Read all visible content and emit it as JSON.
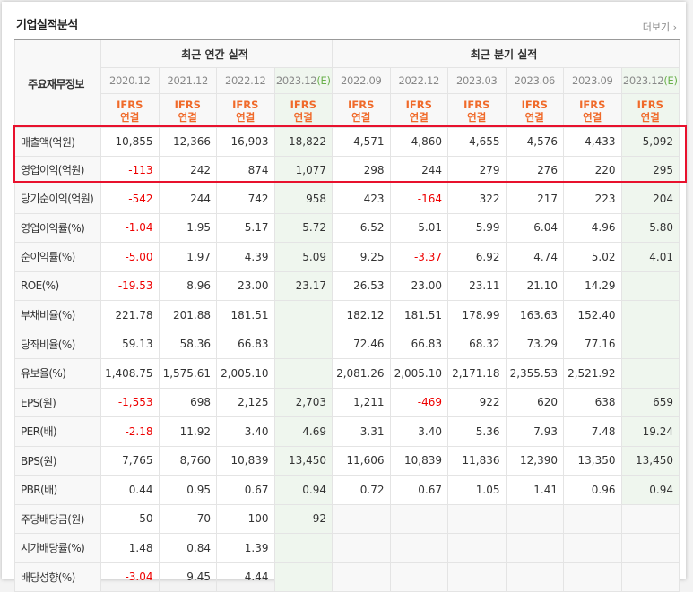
{
  "title": "기업실적분석",
  "more_label": "더보기",
  "more_icon": "chevron-right-icon",
  "header": {
    "label": "주요재무정보",
    "annual_group": "최근 연간 실적",
    "quarter_group": "최근 분기 실적",
    "periods": [
      "2020.12",
      "2021.12",
      "2022.12",
      "2023.12",
      "2022.09",
      "2022.12",
      "2023.03",
      "2023.06",
      "2023.09",
      "2023.12"
    ],
    "estimate_mark": "(E)",
    "ifrs_line1": "IFRS",
    "ifrs_line2": "연결"
  },
  "colors": {
    "highlight_border": "#e8112d",
    "ifrs": "#f06a2a",
    "negative": "#e00000",
    "estimate_bg": "#eff6ee"
  },
  "rows": [
    {
      "label": "매출액(억원)",
      "values": [
        "10,855",
        "12,366",
        "16,903",
        "18,822",
        "4,571",
        "4,860",
        "4,655",
        "4,576",
        "4,433",
        "5,092"
      ]
    },
    {
      "label": "영업이익(억원)",
      "values": [
        "-113",
        "242",
        "874",
        "1,077",
        "298",
        "244",
        "279",
        "276",
        "220",
        "295"
      ]
    },
    {
      "label": "당기순이익(억원)",
      "values": [
        "-542",
        "244",
        "742",
        "958",
        "423",
        "-164",
        "322",
        "217",
        "223",
        "204"
      ]
    },
    {
      "label": "영업이익률(%)",
      "values": [
        "-1.04",
        "1.95",
        "5.17",
        "5.72",
        "6.52",
        "5.01",
        "5.99",
        "6.04",
        "4.96",
        "5.80"
      ]
    },
    {
      "label": "순이익률(%)",
      "values": [
        "-5.00",
        "1.97",
        "4.39",
        "5.09",
        "9.25",
        "-3.37",
        "6.92",
        "4.74",
        "5.02",
        "4.01"
      ]
    },
    {
      "label": "ROE(%)",
      "values": [
        "-19.53",
        "8.96",
        "23.00",
        "23.17",
        "26.53",
        "23.00",
        "23.11",
        "21.10",
        "14.29",
        ""
      ]
    },
    {
      "label": "부채비율(%)",
      "values": [
        "221.78",
        "201.88",
        "181.51",
        "",
        "182.12",
        "181.51",
        "178.99",
        "163.63",
        "152.40",
        ""
      ]
    },
    {
      "label": "당좌비율(%)",
      "values": [
        "59.13",
        "58.36",
        "66.83",
        "",
        "72.46",
        "66.83",
        "68.32",
        "73.29",
        "77.16",
        ""
      ]
    },
    {
      "label": "유보율(%)",
      "values": [
        "1,408.75",
        "1,575.61",
        "2,005.10",
        "",
        "2,081.26",
        "2,005.10",
        "2,171.18",
        "2,355.53",
        "2,521.92",
        ""
      ]
    },
    {
      "label": "EPS(원)",
      "values": [
        "-1,553",
        "698",
        "2,125",
        "2,703",
        "1,211",
        "-469",
        "922",
        "620",
        "638",
        "659"
      ]
    },
    {
      "label": "PER(배)",
      "values": [
        "-2.18",
        "11.92",
        "3.40",
        "4.69",
        "3.31",
        "3.40",
        "5.36",
        "7.93",
        "7.48",
        "19.24"
      ]
    },
    {
      "label": "BPS(원)",
      "values": [
        "7,765",
        "8,760",
        "10,839",
        "13,450",
        "11,606",
        "10,839",
        "11,836",
        "12,390",
        "13,350",
        "13,450"
      ]
    },
    {
      "label": "PBR(배)",
      "values": [
        "0.44",
        "0.95",
        "0.67",
        "0.94",
        "0.72",
        "0.67",
        "1.05",
        "1.41",
        "0.96",
        "0.94"
      ]
    },
    {
      "label": "주당배당금(원)",
      "values": [
        "50",
        "70",
        "100",
        "92",
        "",
        "",
        "",
        "",
        "",
        ""
      ]
    },
    {
      "label": "시가배당률(%)",
      "values": [
        "1.48",
        "0.84",
        "1.39",
        "",
        "",
        "",
        "",
        "",
        "",
        ""
      ]
    },
    {
      "label": "배당성향(%)",
      "values": [
        "-3.04",
        "9.45",
        "4.44",
        "",
        "",
        "",
        "",
        "",
        "",
        ""
      ]
    }
  ]
}
